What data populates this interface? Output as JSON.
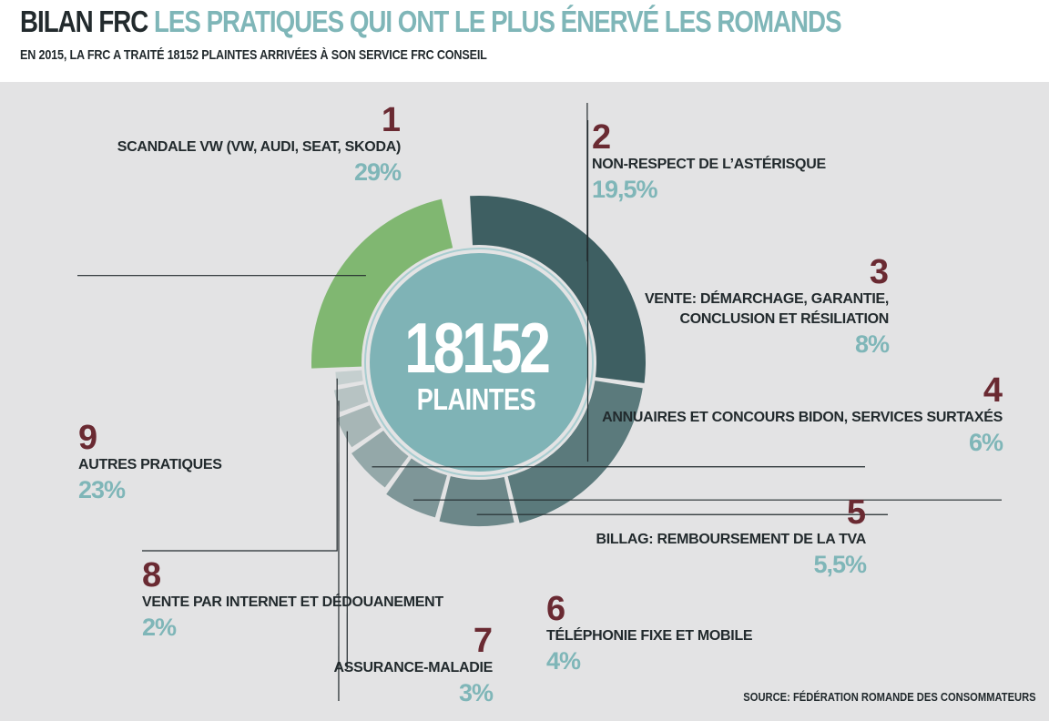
{
  "header": {
    "title_dark": "BILAN FRC",
    "title_accent": "LES PRATIQUES QUI ONT LE PLUS ÉNERVÉ LES ROMANDS",
    "subtitle": "EN 2015, LA FRC A TRAITÉ 18152 PLAINTES ARRIVÉES À SON SERVICE FRC CONSEIL"
  },
  "center": {
    "total": "18152",
    "unit": "PLAINTES"
  },
  "source": "SOURCE: FÉDÉRATION ROMANDE DES CONSOMMATEURS",
  "colors": {
    "accent": "#7fb6b8",
    "number": "#6a2a32",
    "background": "#e3e3e4",
    "center": "#7fb3b6"
  },
  "categories": [
    {
      "rank": "1",
      "label": "SCANDALE VW (VW, AUDI, SEAT, SKODA)",
      "pct": "29%"
    },
    {
      "rank": "2",
      "label": "NON-RESPECT DE L’ASTÉRISQUE",
      "pct": "19,5%"
    },
    {
      "rank": "3",
      "label_line1": "VENTE: DÉMARCHAGE, GARANTIE,",
      "label_line2": "CONCLUSION ET RÉSILIATION",
      "pct": "8%"
    },
    {
      "rank": "4",
      "label": "ANNUAIRES ET CONCOURS BIDON, SERVICES SURTAXÉS",
      "pct": "6%"
    },
    {
      "rank": "5",
      "label": "BILLAG: REMBOURSEMENT DE LA TVA",
      "pct": "5,5%"
    },
    {
      "rank": "6",
      "label": "TÉLÉPHONIE FIXE ET MOBILE",
      "pct": "4%"
    },
    {
      "rank": "7",
      "label": "ASSURANCE-MALADIE",
      "pct": "3%"
    },
    {
      "rank": "8",
      "label": "VENTE PAR INTERNET ET DÉDOUANEMENT",
      "pct": "2%"
    },
    {
      "rank": "9",
      "label": "AUTRES PRATIQUES",
      "pct": "23%"
    }
  ],
  "chart_data": {
    "type": "pie",
    "variant": "donut",
    "title": "LES PRATIQUES QUI ONT LE PLUS ÉNERVÉ LES ROMANDS",
    "total": 18152,
    "unit": "%",
    "categories": [
      "SCANDALE VW (VW, AUDI, SEAT, SKODA)",
      "NON-RESPECT DE L’ASTÉRISQUE",
      "VENTE: DÉMARCHAGE, GARANTIE, CONCLUSION ET RÉSILIATION",
      "ANNUAIRES ET CONCOURS BIDON, SERVICES SURTAXÉS",
      "BILLAG: REMBOURSEMENT DE LA TVA",
      "TÉLÉPHONIE FIXE ET MOBILE",
      "ASSURANCE-MALADIE",
      "VENTE PAR INTERNET ET DÉDOUANEMENT",
      "AUTRES PRATIQUES"
    ],
    "values": [
      29,
      19.5,
      8,
      6,
      5.5,
      4,
      3,
      2,
      23
    ],
    "slice_colors": [
      "#3e5f62",
      "#5b7a7c",
      "#6c8789",
      "#7e9698",
      "#94a8a9",
      "#a7b6b6",
      "#b7c3c3",
      "#c5cfcf",
      "#80b771"
    ]
  }
}
